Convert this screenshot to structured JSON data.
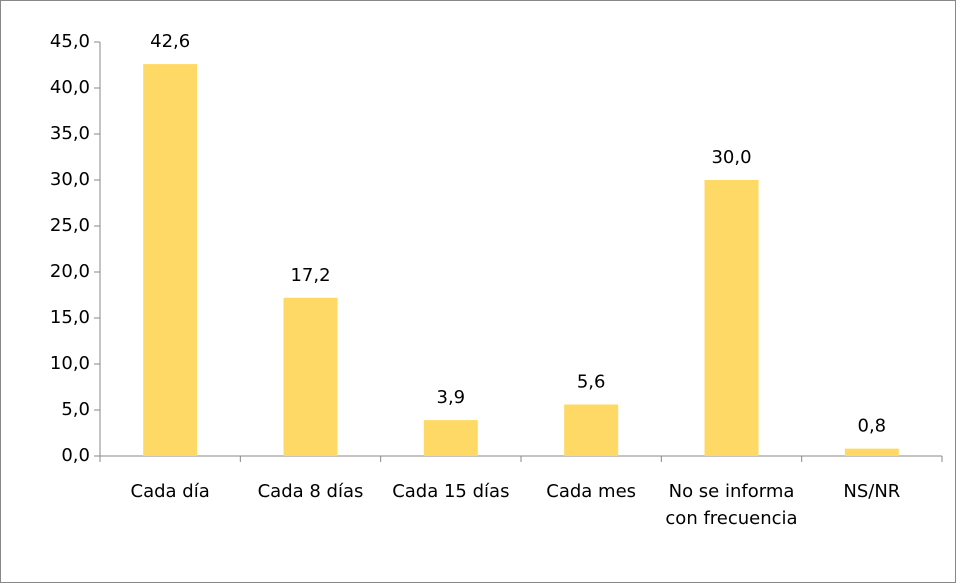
{
  "chart_data": {
    "type": "bar",
    "categories": [
      "Cada día",
      "Cada 8 días",
      "Cada 15 días",
      "Cada mes",
      "No se informa con frecuencia",
      "NS/NR"
    ],
    "values": [
      42.6,
      17.2,
      3.9,
      5.6,
      30.0,
      0.8
    ],
    "value_labels": [
      "42,6",
      "17,2",
      "3,9",
      "5,6",
      "30,0",
      "0,8"
    ],
    "color": "#ffd966",
    "ylim": [
      0,
      45
    ],
    "yticks": [
      {
        "value": 0,
        "label": "0,0"
      },
      {
        "value": 5,
        "label": "5,0"
      },
      {
        "value": 10,
        "label": "10,0"
      },
      {
        "value": 15,
        "label": "15,0"
      },
      {
        "value": 20,
        "label": "20,0"
      },
      {
        "value": 25,
        "label": "25,0"
      },
      {
        "value": 30,
        "label": "30,0"
      },
      {
        "value": 35,
        "label": "35,0"
      },
      {
        "value": 40,
        "label": "40,0"
      },
      {
        "value": 45,
        "label": "45,0"
      }
    ],
    "grid": false
  }
}
